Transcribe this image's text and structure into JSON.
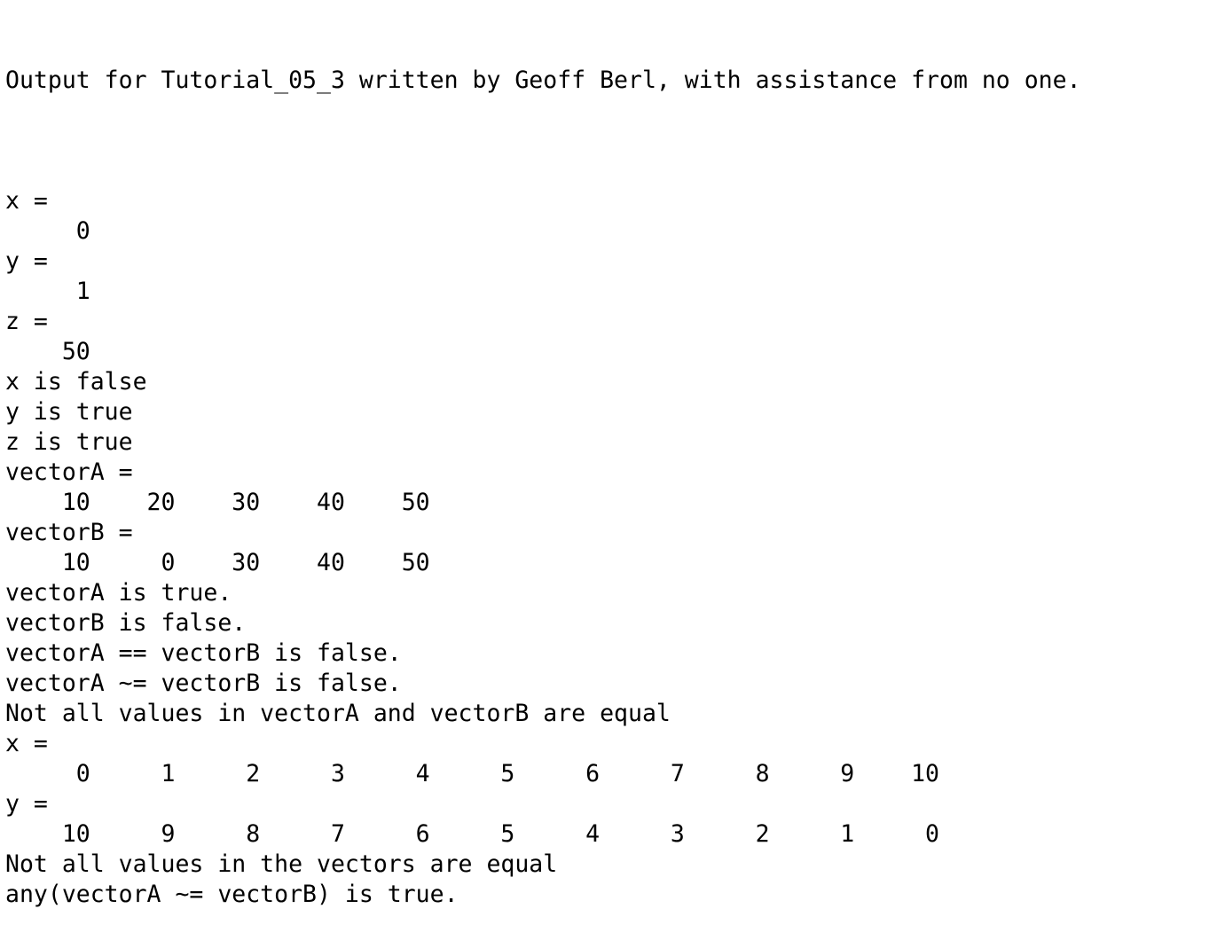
{
  "header": {
    "title": "Output for Tutorial_05_3 written by Geoff Berl, with assistance from no one."
  },
  "lines": [
    "x =",
    "     0",
    "y =",
    "     1",
    "z =",
    "    50",
    "x is false",
    "y is true",
    "z is true",
    "vectorA =",
    "    10    20    30    40    50",
    "vectorB =",
    "    10     0    30    40    50",
    "vectorA is true.",
    "vectorB is false.",
    "vectorA == vectorB is false.",
    "vectorA ~= vectorB is false.",
    "Not all values in vectorA and vectorB are equal",
    "x =",
    "     0     1     2     3     4     5     6     7     8     9    10",
    "y =",
    "    10     9     8     7     6     5     4     3     2     1     0",
    "Not all values in the vectors are equal",
    "any(vectorA ~= vectorB) is true."
  ]
}
